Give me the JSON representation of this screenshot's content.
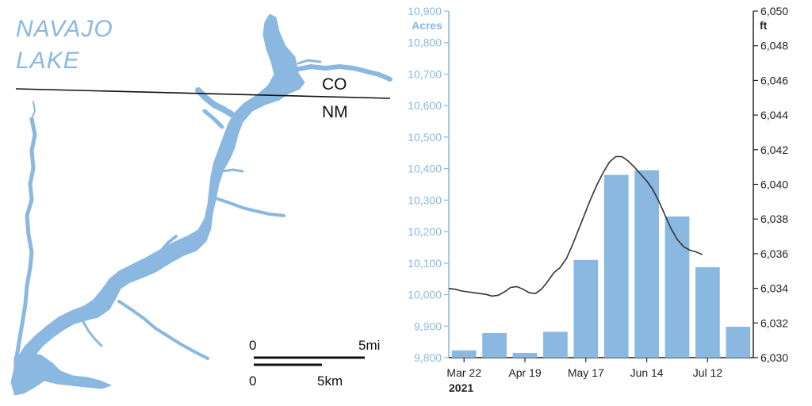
{
  "map": {
    "title_line1": "NAVAJO",
    "title_line2": "LAKE",
    "state_north": "CO",
    "state_south": "NM",
    "scale_mi_start": "0",
    "scale_mi_end": "5mi",
    "scale_km_start": "0",
    "scale_km_end": "5km",
    "water_color": "#8ab8e0"
  },
  "chart_data": {
    "type": "bar",
    "x_tick_labels": [
      "Mar 22",
      "Apr 19",
      "May 17",
      "Jun 14",
      "Jul 12"
    ],
    "year_label": "2021",
    "y_left_label": "Acres",
    "y_left_ticks": [
      "9,800",
      "9,900",
      "10,000",
      "10,100",
      "10,200",
      "10,300",
      "10,400",
      "10,500",
      "10,600",
      "10,700",
      "10,800",
      "10,900"
    ],
    "y_left_range": [
      9800,
      10900
    ],
    "y_right_label": "ft",
    "y_right_ticks": [
      "6,030",
      "6,032",
      "6,034",
      "6,036",
      "6,038",
      "6,040",
      "6,042",
      "6,044",
      "6,046",
      "6,048",
      "6,050"
    ],
    "y_right_range": [
      6030,
      6050
    ],
    "bar_series": {
      "unit": "acres",
      "values": [
        9823,
        9878,
        9815,
        9882,
        10110,
        10380,
        10395,
        10248,
        10087,
        9898
      ]
    },
    "line_series": {
      "unit": "ft",
      "points": [
        [
          0,
          6033.99
        ],
        [
          0.2,
          6033.95
        ],
        [
          0.4,
          6033.85
        ],
        [
          0.6,
          6033.8
        ],
        [
          0.8,
          6033.75
        ],
        [
          1.0,
          6033.7
        ],
        [
          1.2,
          6033.65
        ],
        [
          1.4,
          6033.55
        ],
        [
          1.6,
          6033.6
        ],
        [
          1.8,
          6033.8
        ],
        [
          2.0,
          6034.05
        ],
        [
          2.2,
          6034.1
        ],
        [
          2.4,
          6033.95
        ],
        [
          2.6,
          6033.75
        ],
        [
          2.8,
          6033.7
        ],
        [
          3.0,
          6033.95
        ],
        [
          3.2,
          6034.4
        ],
        [
          3.4,
          6034.9
        ],
        [
          3.6,
          6035.2
        ],
        [
          3.8,
          6035.7
        ],
        [
          4.0,
          6036.5
        ],
        [
          4.2,
          6037.4
        ],
        [
          4.4,
          6038.3
        ],
        [
          4.6,
          6039.2
        ],
        [
          4.8,
          6040.0
        ],
        [
          5.0,
          6040.7
        ],
        [
          5.2,
          6041.3
        ],
        [
          5.4,
          6041.6
        ],
        [
          5.6,
          6041.6
        ],
        [
          5.8,
          6041.35
        ],
        [
          6.0,
          6041.0
        ],
        [
          6.2,
          6040.6
        ],
        [
          6.4,
          6040.2
        ],
        [
          6.6,
          6039.7
        ],
        [
          6.8,
          6039.0
        ],
        [
          7.0,
          6038.2
        ],
        [
          7.2,
          6037.4
        ],
        [
          7.4,
          6036.8
        ],
        [
          7.6,
          6036.4
        ],
        [
          7.8,
          6036.2
        ],
        [
          8.0,
          6036.1
        ],
        [
          8.2,
          6035.95
        ]
      ]
    },
    "colors": {
      "bars": "#8ab8e0",
      "left_axis": "#8ab8e0",
      "right_axis": "#222222",
      "line": "#333333"
    }
  }
}
